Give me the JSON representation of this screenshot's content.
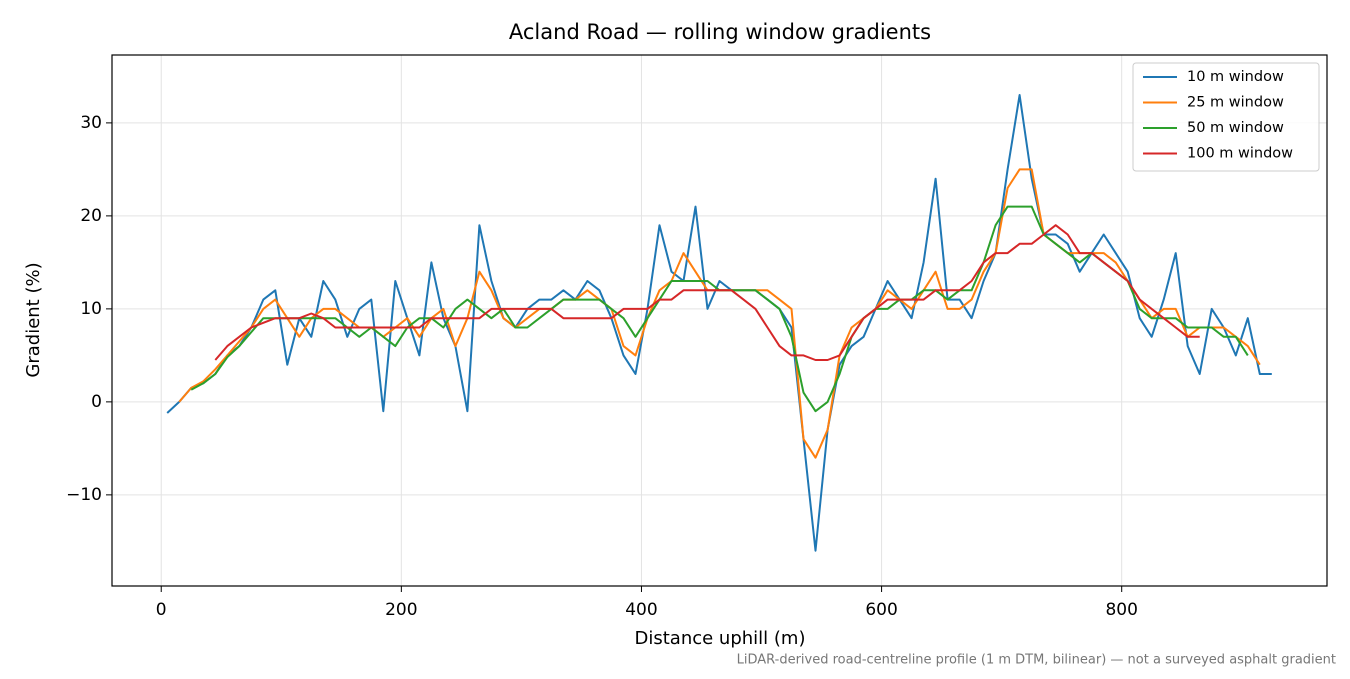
{
  "chart_data": {
    "type": "line",
    "title": "Acland Road — rolling window gradients",
    "x_label": "Distance uphill (m)",
    "y_label": "Gradient (%)",
    "footnote": "LiDAR-derived road-centreline profile (1 m DTM, bilinear) — not a surveyed asphalt gradient",
    "x": [
      5,
      15,
      25,
      35,
      45,
      55,
      65,
      75,
      85,
      95,
      105,
      115,
      125,
      135,
      145,
      155,
      165,
      175,
      185,
      195,
      205,
      215,
      225,
      235,
      245,
      255,
      265,
      275,
      285,
      295,
      305,
      315,
      325,
      335,
      345,
      355,
      365,
      375,
      385,
      395,
      405,
      415,
      425,
      435,
      445,
      455,
      465,
      475,
      485,
      495,
      505,
      515,
      525,
      535,
      545,
      555,
      565,
      575,
      585,
      595,
      605,
      615,
      625,
      635,
      645,
      655,
      665,
      675,
      685,
      695,
      705,
      715,
      725,
      735,
      745,
      755,
      765,
      775,
      785,
      795,
      805,
      815,
      825,
      835,
      845,
      855,
      865,
      875,
      885,
      895,
      905,
      915,
      925
    ],
    "series": [
      {
        "name": "10 m window",
        "color": "#1f77b4",
        "values": [
          -1.2,
          0,
          1.5,
          2,
          3,
          5,
          6,
          8,
          11,
          12,
          4,
          9,
          7,
          13,
          11,
          7,
          10,
          11,
          -1,
          13,
          9,
          5,
          15,
          9,
          6,
          -1,
          19,
          13,
          9,
          8,
          10,
          11,
          11,
          12,
          11,
          13,
          12,
          9,
          5,
          3,
          10,
          19,
          14,
          13,
          21,
          10,
          13,
          12,
          12,
          12,
          11,
          10,
          8,
          -4,
          -16,
          -3,
          4,
          6,
          7,
          10,
          13,
          11,
          9,
          15,
          24,
          11,
          11,
          9,
          13,
          16,
          25,
          33,
          24,
          18,
          18,
          17,
          14,
          16,
          18,
          16,
          14,
          9,
          7,
          11,
          16,
          6,
          3,
          10,
          8,
          5,
          9,
          3,
          3
        ]
      },
      {
        "name": "25 m window",
        "color": "#ff7f0e",
        "values": [
          null,
          0,
          1.5,
          2.2,
          3.5,
          5,
          6.5,
          8,
          10,
          11,
          9,
          7,
          9,
          10,
          10,
          9,
          8,
          8,
          7,
          8,
          9,
          7,
          9,
          10,
          6,
          9,
          14,
          12,
          9,
          8,
          9,
          10,
          10,
          11,
          11,
          12,
          11,
          10,
          6,
          5,
          9,
          12,
          13,
          16,
          14,
          12,
          12,
          12,
          12,
          12,
          12,
          11,
          10,
          -4,
          -6,
          -3,
          5,
          8,
          9,
          10,
          12,
          11,
          10,
          12,
          14,
          10,
          10,
          11,
          14,
          16,
          23,
          25,
          25,
          18,
          17,
          16,
          16,
          16,
          16,
          15,
          13,
          11,
          9,
          10,
          10,
          7,
          8,
          8,
          8,
          7,
          6,
          4,
          null
        ]
      },
      {
        "name": "50 m window",
        "color": "#2ca02c",
        "values": [
          null,
          null,
          1.3,
          2,
          3,
          4.8,
          6,
          7.5,
          9,
          9,
          9,
          9,
          9,
          9,
          9,
          8,
          7,
          8,
          7,
          6,
          8,
          9,
          9,
          8,
          10,
          11,
          10,
          9,
          10,
          8,
          8,
          9,
          10,
          11,
          11,
          11,
          11,
          10,
          9,
          7,
          9,
          11,
          13,
          13,
          13,
          13,
          12,
          12,
          12,
          12,
          11,
          10,
          7,
          1,
          -1,
          0,
          3,
          7,
          9,
          10,
          10,
          11,
          11,
          12,
          12,
          11,
          12,
          12,
          15,
          19,
          21,
          21,
          21,
          18,
          17,
          16,
          15,
          16,
          15,
          14,
          13,
          10,
          9,
          9,
          9,
          8,
          8,
          8,
          7,
          7,
          5,
          null,
          null
        ]
      },
      {
        "name": "100 m window",
        "color": "#d62728",
        "values": [
          null,
          null,
          null,
          null,
          4.5,
          6,
          7,
          8,
          8.5,
          9,
          9,
          9,
          9.5,
          9,
          8,
          8,
          8,
          8,
          8,
          8,
          8,
          8,
          9,
          9,
          9,
          9,
          9,
          10,
          10,
          10,
          10,
          10,
          10,
          9,
          9,
          9,
          9,
          9,
          10,
          10,
          10,
          11,
          11,
          12,
          12,
          12,
          12,
          12,
          11,
          10,
          8,
          6,
          5,
          5,
          4.5,
          4.5,
          5,
          7,
          9,
          10,
          11,
          11,
          11,
          11,
          12,
          12,
          12,
          13,
          15,
          16,
          16,
          17,
          17,
          18,
          19,
          18,
          16,
          16,
          15,
          14,
          13,
          11,
          10,
          9,
          8,
          7,
          7,
          null,
          null,
          null,
          null,
          null,
          null
        ]
      }
    ],
    "xlim": [
      -41,
      971
    ],
    "xticks": [
      0,
      200,
      400,
      600,
      800
    ],
    "ylim": [
      -19.8,
      37.3
    ],
    "yticks": [
      {
        "value": -10,
        "label": "−10"
      },
      0,
      10,
      20,
      30
    ],
    "grid": true,
    "legend": "upper right"
  }
}
